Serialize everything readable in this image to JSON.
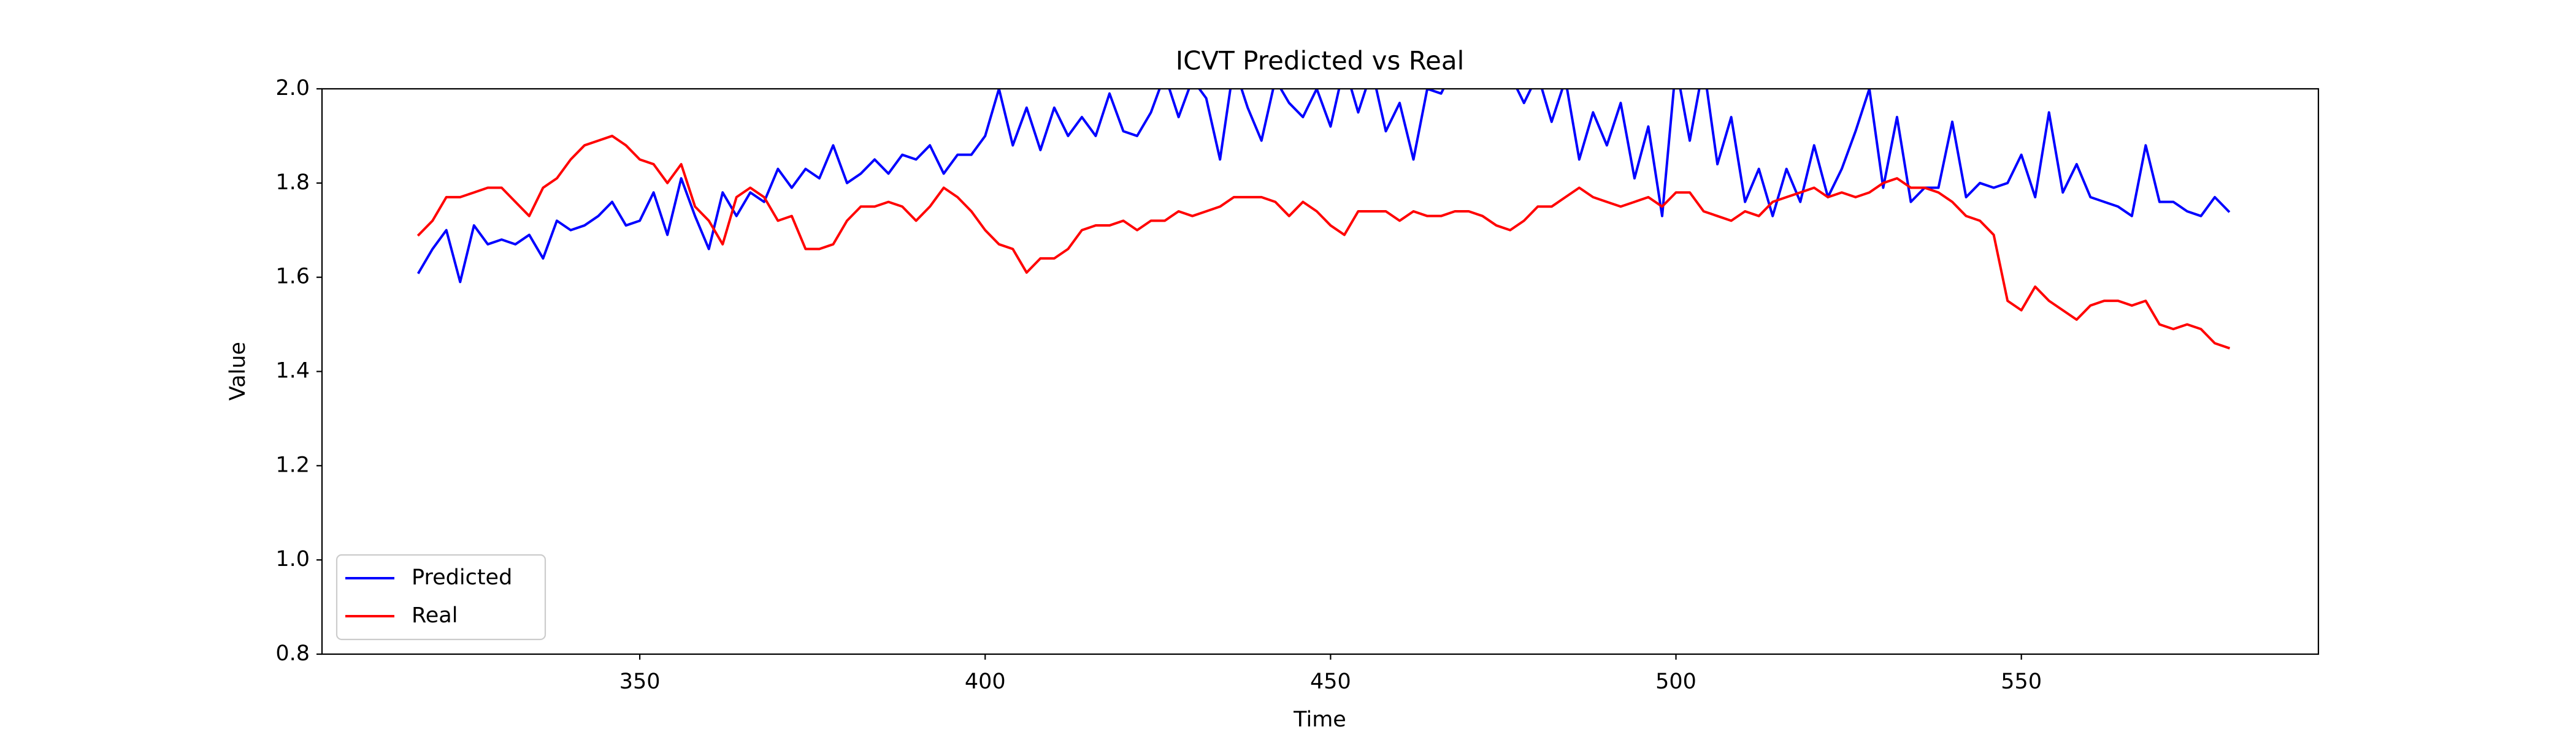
{
  "chart_data": {
    "type": "line",
    "title": "ICVT Predicted vs Real",
    "xlabel": "Time",
    "ylabel": "Value",
    "x": [
      318,
      320,
      322,
      324,
      326,
      328,
      330,
      332,
      334,
      336,
      338,
      340,
      342,
      344,
      346,
      348,
      350,
      352,
      354,
      356,
      358,
      360,
      362,
      364,
      366,
      368,
      370,
      372,
      374,
      376,
      378,
      380,
      382,
      384,
      386,
      388,
      390,
      392,
      394,
      396,
      398,
      400,
      402,
      404,
      406,
      408,
      410,
      412,
      414,
      416,
      418,
      420,
      422,
      424,
      426,
      428,
      430,
      432,
      434,
      436,
      438,
      440,
      442,
      444,
      446,
      448,
      450,
      452,
      454,
      456,
      458,
      460,
      462,
      464,
      466,
      468,
      470,
      472,
      474,
      476,
      478,
      480,
      482,
      484,
      486,
      488,
      490,
      492,
      494,
      496,
      498,
      500,
      502,
      504,
      506,
      508,
      510,
      512,
      514,
      516,
      518,
      520,
      522,
      524,
      526,
      528,
      530,
      532,
      534,
      536,
      538,
      540,
      542,
      544,
      546,
      548,
      550,
      552,
      554,
      556,
      558,
      560,
      562,
      564,
      566,
      568,
      570,
      572,
      574,
      576,
      578,
      580
    ],
    "series": [
      {
        "name": "Predicted",
        "color": "#0000ff",
        "values": [
          1.61,
          1.66,
          1.7,
          1.59,
          1.71,
          1.67,
          1.68,
          1.67,
          1.69,
          1.64,
          1.72,
          1.7,
          1.71,
          1.73,
          1.76,
          1.71,
          1.72,
          1.78,
          1.69,
          1.81,
          1.73,
          1.66,
          1.78,
          1.73,
          1.78,
          1.76,
          1.83,
          1.79,
          1.83,
          1.81,
          1.88,
          1.8,
          1.82,
          1.85,
          1.82,
          1.86,
          1.85,
          1.88,
          1.82,
          1.86,
          1.86,
          1.9,
          2.0,
          1.88,
          1.96,
          1.87,
          1.96,
          1.9,
          1.94,
          1.9,
          1.99,
          1.91,
          1.9,
          1.95,
          2.03,
          1.94,
          2.02,
          1.98,
          1.85,
          2.05,
          1.96,
          1.89,
          2.02,
          1.97,
          1.94,
          2.0,
          1.92,
          2.05,
          1.95,
          2.04,
          1.91,
          1.97,
          1.85,
          2.0,
          1.99,
          2.05,
          2.06,
          2.04,
          2.08,
          2.03,
          1.97,
          2.03,
          1.93,
          2.02,
          1.85,
          1.95,
          1.88,
          1.97,
          1.81,
          1.92,
          1.73,
          2.05,
          1.89,
          2.05,
          1.84,
          1.94,
          1.76,
          1.83,
          1.73,
          1.83,
          1.76,
          1.88,
          1.77,
          1.83,
          1.91,
          2.0,
          1.79,
          1.94,
          1.76,
          1.79,
          1.79,
          1.93,
          1.77,
          1.8,
          1.79,
          1.8,
          1.86,
          1.77,
          1.95,
          1.78,
          1.84,
          1.77,
          1.76,
          1.75,
          1.73,
          1.88,
          1.76,
          1.76,
          1.74,
          1.73,
          1.77,
          1.74
        ]
      },
      {
        "name": "Real",
        "color": "#ff0000",
        "values": [
          1.69,
          1.72,
          1.77,
          1.77,
          1.78,
          1.79,
          1.79,
          1.76,
          1.73,
          1.79,
          1.81,
          1.85,
          1.88,
          1.89,
          1.9,
          1.88,
          1.85,
          1.84,
          1.8,
          1.84,
          1.75,
          1.72,
          1.67,
          1.77,
          1.79,
          1.77,
          1.72,
          1.73,
          1.66,
          1.66,
          1.67,
          1.72,
          1.75,
          1.75,
          1.76,
          1.75,
          1.72,
          1.75,
          1.79,
          1.77,
          1.74,
          1.7,
          1.67,
          1.66,
          1.61,
          1.64,
          1.64,
          1.66,
          1.7,
          1.71,
          1.71,
          1.72,
          1.7,
          1.72,
          1.72,
          1.74,
          1.73,
          1.74,
          1.75,
          1.77,
          1.77,
          1.77,
          1.76,
          1.73,
          1.76,
          1.74,
          1.71,
          1.69,
          1.74,
          1.74,
          1.74,
          1.72,
          1.74,
          1.73,
          1.73,
          1.74,
          1.74,
          1.73,
          1.71,
          1.7,
          1.72,
          1.75,
          1.75,
          1.77,
          1.79,
          1.77,
          1.76,
          1.75,
          1.76,
          1.77,
          1.75,
          1.78,
          1.78,
          1.74,
          1.73,
          1.72,
          1.74,
          1.73,
          1.76,
          1.77,
          1.78,
          1.79,
          1.77,
          1.78,
          1.77,
          1.78,
          1.8,
          1.81,
          1.79,
          1.79,
          1.78,
          1.76,
          1.73,
          1.72,
          1.69,
          1.55,
          1.53,
          1.58,
          1.55,
          1.53,
          1.51,
          1.54,
          1.55,
          1.55,
          1.54,
          1.55,
          1.5,
          1.49,
          1.5,
          1.49,
          1.46,
          1.45
        ]
      }
    ],
    "xlim": [
      304,
      593
    ],
    "xticks": [
      350,
      400,
      450,
      500,
      550
    ],
    "ylim": [
      0.8,
      2.0
    ],
    "yticks": [
      {
        "value": 0.8,
        "label": "0.8"
      },
      {
        "value": 1.0,
        "label": "1.0"
      },
      {
        "value": 1.2,
        "label": "1.2"
      },
      {
        "value": 1.4,
        "label": "1.4"
      },
      {
        "value": 1.6,
        "label": "1.6"
      },
      {
        "value": 1.8,
        "label": "1.8"
      },
      {
        "value": 2.0,
        "label": "2.0"
      }
    ],
    "grid": false,
    "legend": "lower left"
  }
}
